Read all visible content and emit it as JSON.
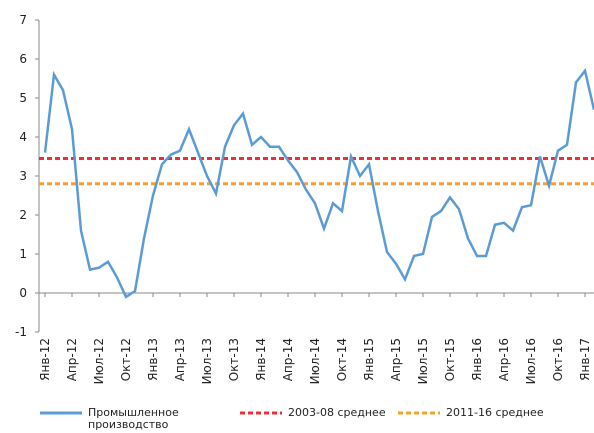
{
  "chart_data": {
    "type": "line",
    "categories": [
      "Янв-12",
      null,
      null,
      "Апр-12",
      null,
      null,
      "Июл-12",
      null,
      null,
      "Окт-12",
      null,
      null,
      "Янв-13",
      null,
      null,
      "Апр-13",
      null,
      null,
      "Июл-13",
      null,
      null,
      "Окт-13",
      null,
      null,
      "Янв-14",
      null,
      null,
      "Апр-14",
      null,
      null,
      "Июл-14",
      null,
      null,
      "Окт-14",
      null,
      null,
      "Янв-15",
      null,
      null,
      "Апр-15",
      null,
      null,
      "Июл-15",
      null,
      null,
      "Окт-15",
      null,
      null,
      "Янв-16",
      null,
      null,
      "Апр-16",
      null,
      null,
      "Июл-16",
      null,
      null,
      "Окт-16",
      null,
      null,
      "Янв-17",
      null
    ],
    "series": [
      {
        "name": "Промышленное производство",
        "color": "#5b9bd5",
        "values": [
          3.6,
          5.6,
          5.2,
          4.2,
          1.6,
          0.6,
          0.65,
          0.8,
          0.4,
          -0.1,
          0.05,
          1.4,
          2.5,
          3.3,
          3.55,
          3.65,
          4.2,
          3.6,
          3.0,
          2.55,
          3.75,
          4.3,
          4.6,
          3.8,
          4.0,
          3.75,
          3.75,
          3.4,
          3.1,
          2.65,
          2.3,
          1.65,
          2.3,
          2.1,
          3.5,
          3.0,
          3.3,
          2.1,
          1.05,
          0.75,
          0.35,
          0.95,
          1.0,
          1.95,
          2.1,
          2.45,
          2.15,
          1.4,
          0.95,
          0.95,
          1.75,
          1.8,
          1.6,
          2.2,
          2.25,
          3.5,
          2.75,
          3.65,
          3.8,
          5.4,
          5.7,
          4.7
        ]
      }
    ],
    "reference_lines": [
      {
        "name": "2003-08 среднее",
        "value": 3.45,
        "color": "#e8303a"
      },
      {
        "name": "2011-16 среднее",
        "value": 2.8,
        "color": "#f5a033"
      }
    ],
    "ylim": [
      -1,
      7
    ],
    "yticks": [
      -1,
      0,
      1,
      2,
      3,
      4,
      5,
      6,
      7
    ],
    "grid": false
  }
}
